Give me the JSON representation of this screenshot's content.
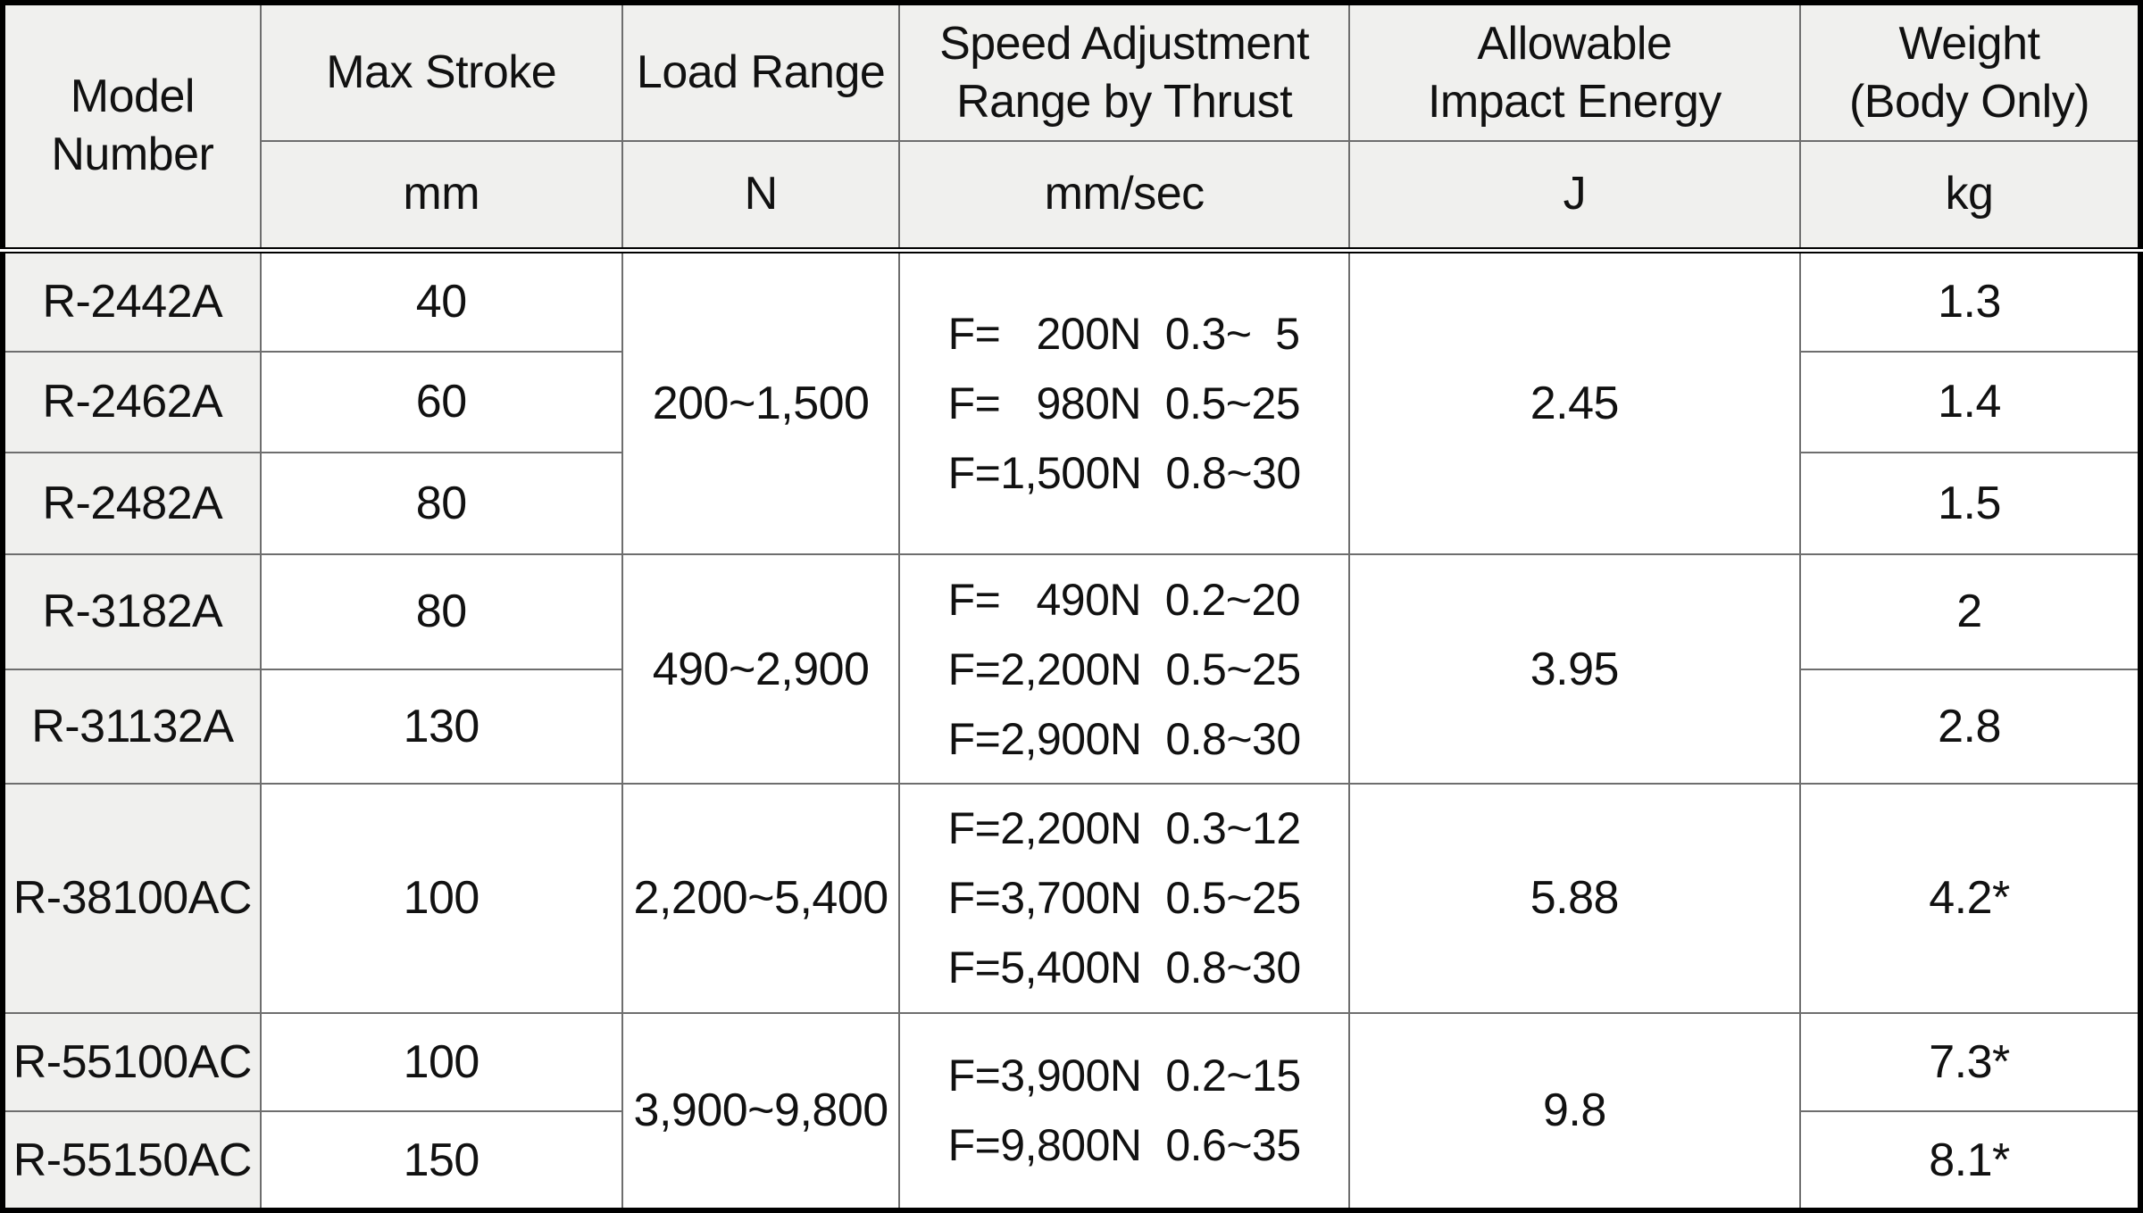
{
  "table": {
    "header": {
      "model": "Model\nNumber",
      "columns": [
        {
          "title": "Max Stroke",
          "unit": "mm"
        },
        {
          "title": "Load Range",
          "unit": "N"
        },
        {
          "title": "Speed Adjustment\nRange by Thrust",
          "unit": "mm/sec"
        },
        {
          "title": "Allowable\nImpact Energy",
          "unit": "J"
        },
        {
          "title": "Weight\n(Body Only)",
          "unit": "kg"
        }
      ]
    },
    "groups": [
      {
        "load_range": "200~1,500",
        "impact_energy": "2.45",
        "speed_lines": [
          "F=   200N  0.3~  5",
          "F=   980N  0.5~25",
          "F=1,500N  0.8~30"
        ],
        "models": [
          {
            "model": "R-2442A",
            "max_stroke": "40",
            "weight": "1.3"
          },
          {
            "model": "R-2462A",
            "max_stroke": "60",
            "weight": "1.4"
          },
          {
            "model": "R-2482A",
            "max_stroke": "80",
            "weight": "1.5"
          }
        ]
      },
      {
        "load_range": "490~2,900",
        "impact_energy": "3.95",
        "speed_lines": [
          "F=   490N  0.2~20",
          "F=2,200N  0.5~25",
          "F=2,900N  0.8~30"
        ],
        "models": [
          {
            "model": "R-3182A",
            "max_stroke": "80",
            "weight": "2"
          },
          {
            "model": "R-31132A",
            "max_stroke": "130",
            "weight": "2.8"
          }
        ]
      },
      {
        "load_range": "2,200~5,400",
        "impact_energy": "5.88",
        "speed_lines": [
          "F=2,200N  0.3~12",
          "F=3,700N  0.5~25",
          "F=5,400N  0.8~30"
        ],
        "models": [
          {
            "model": "R-38100AC",
            "max_stroke": "100",
            "weight": "4.2*"
          }
        ]
      },
      {
        "load_range": "3,900~9,800",
        "impact_energy": "9.8",
        "speed_lines": [
          "F=3,900N  0.2~15",
          "F=9,800N  0.6~35"
        ],
        "models": [
          {
            "model": "R-55100AC",
            "max_stroke": "100",
            "weight": "7.3*"
          },
          {
            "model": "R-55150AC",
            "max_stroke": "150",
            "weight": "8.1*"
          }
        ]
      }
    ]
  },
  "colors": {
    "header_bg": "#f0f0ee",
    "body_bg": "#ffffff",
    "grid_line": "#6e6e6e",
    "frame": "#000000",
    "text": "#111111"
  }
}
